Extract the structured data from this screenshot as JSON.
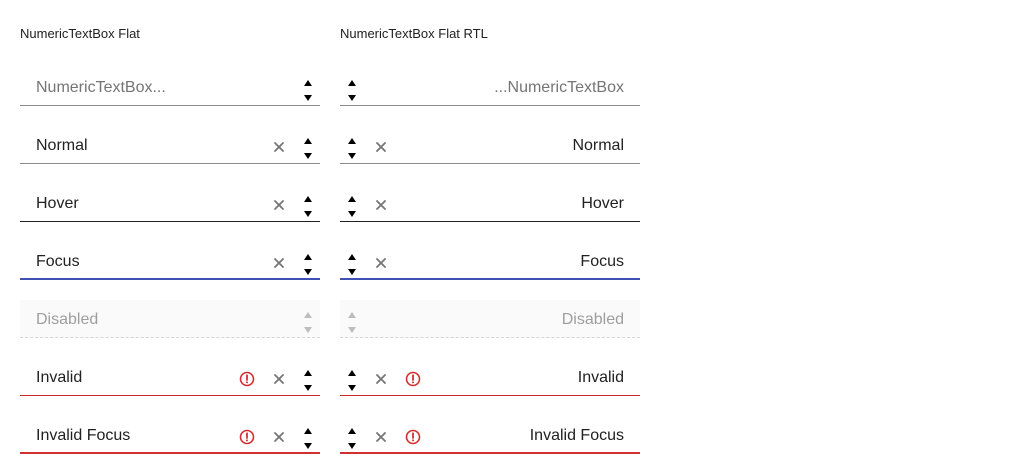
{
  "colors": {
    "text": "#212121",
    "placeholder": "#757575",
    "disabled_text": "#9e9e9e",
    "focus": "#3f51b5",
    "invalid": "#c62828",
    "icon": "#757575"
  },
  "ltr": {
    "title": "NumericTextBox Flat",
    "fields": [
      {
        "value": "NumericTextBox..."
      },
      {
        "value": "Normal"
      },
      {
        "value": "Hover"
      },
      {
        "value": "Focus"
      },
      {
        "value": "Disabled"
      },
      {
        "value": "Invalid"
      },
      {
        "value": "Invalid Focus"
      }
    ]
  },
  "rtl": {
    "title": "NumericTextBox Flat RTL",
    "fields": [
      {
        "value": "...NumericTextBox"
      },
      {
        "value": "Normal"
      },
      {
        "value": "Hover"
      },
      {
        "value": "Focus"
      },
      {
        "value": "Disabled"
      },
      {
        "value": "Invalid"
      },
      {
        "value": "Invalid Focus"
      }
    ]
  },
  "icons": {
    "increment": "caret-up-icon",
    "decrement": "caret-down-icon",
    "clear": "close-icon",
    "error": "exclamation-circle-icon"
  }
}
